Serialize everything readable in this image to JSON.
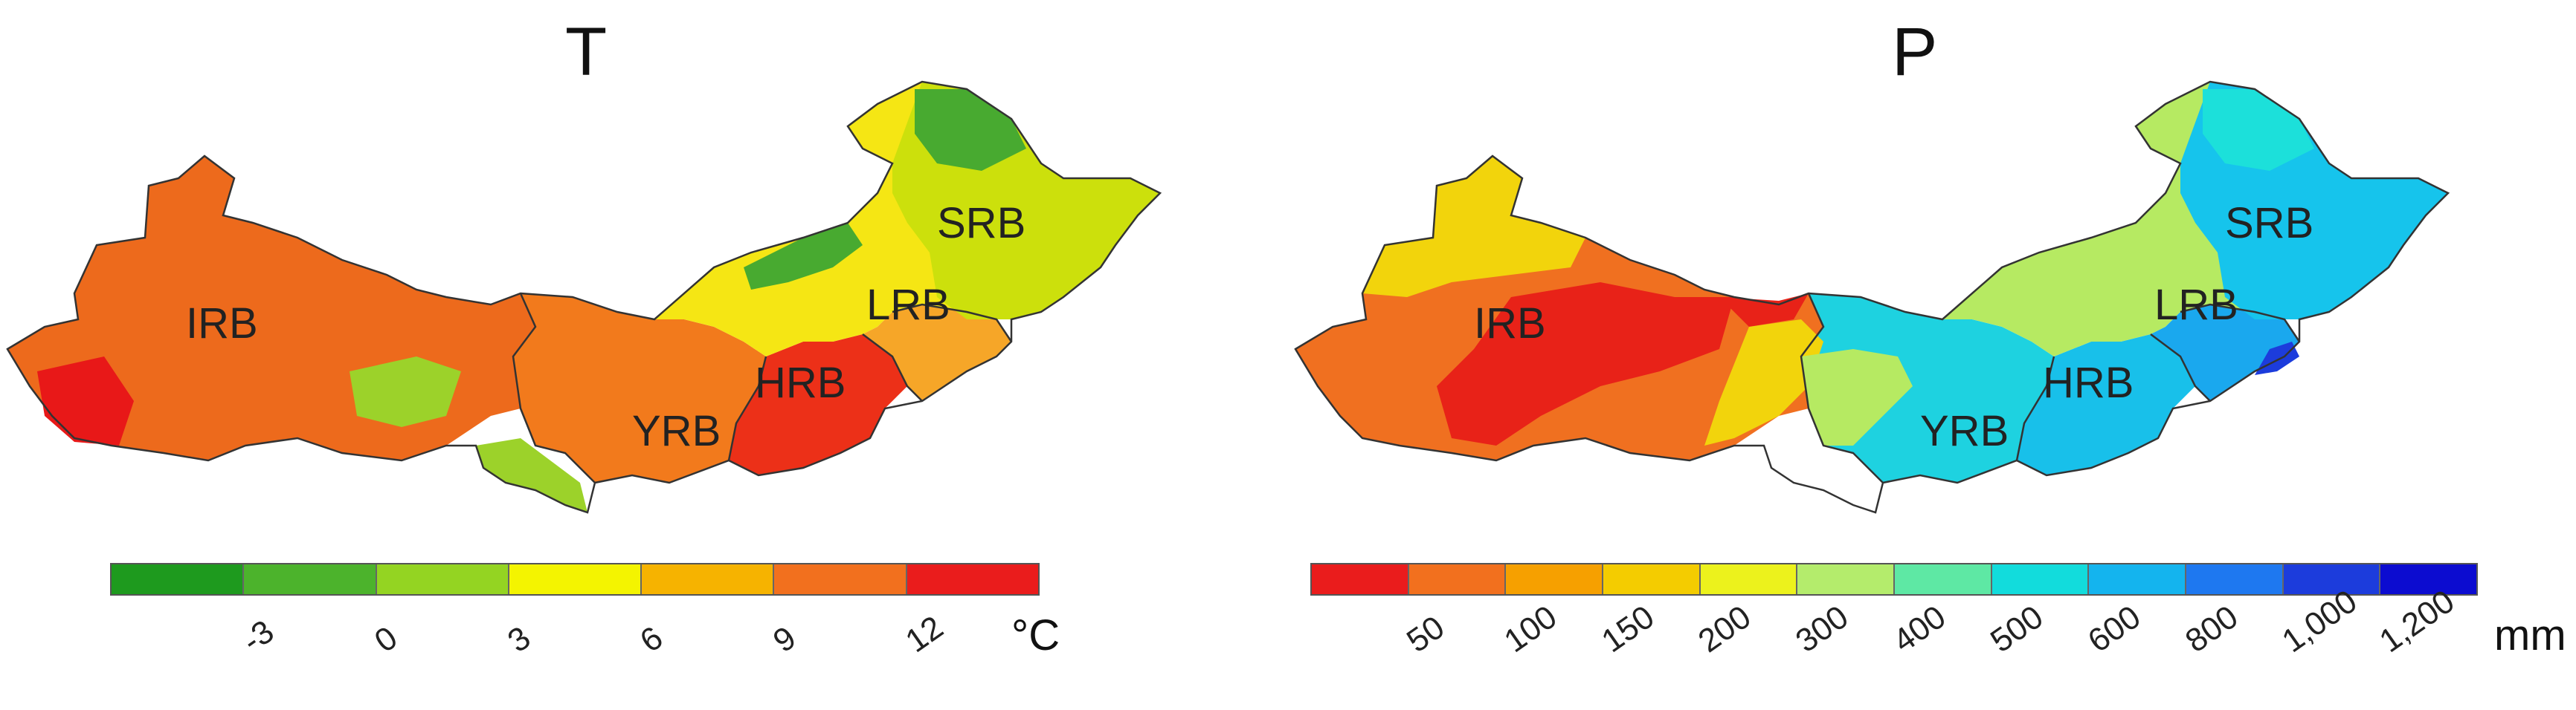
{
  "maps": [
    {
      "title": "T",
      "unit": "°C",
      "legend_colors": [
        "#1e9a1e",
        "#4cb32c",
        "#94d422",
        "#f4f400",
        "#f6b300",
        "#f2701e",
        "#ea1c1c"
      ],
      "tick_labels": [
        "-3",
        "0",
        "3",
        "6",
        "9",
        "12"
      ],
      "regions": [
        "IRB",
        "YRB",
        "HRB",
        "LRB",
        "SRB"
      ],
      "fill_colors": {
        "irb": "#ed6a1c",
        "yrb": "#f27a1c",
        "hrb": "#ec3018",
        "lrb": "#f6a628",
        "srb": "#cce00c",
        "ne": "#48aa30",
        "hot": "#e81818",
        "cool": "#9cd22a",
        "warm": "#f5e614"
      }
    },
    {
      "title": "P",
      "unit": "mm",
      "legend_colors": [
        "#ea1c1c",
        "#f2701e",
        "#f6a000",
        "#f4cc00",
        "#ecf21c",
        "#b4ec6c",
        "#5ee8a4",
        "#12dcdc",
        "#14b4ee",
        "#1e78f0",
        "#1c3cdc",
        "#0c0cd0"
      ],
      "tick_labels": [
        "50",
        "100",
        "150",
        "200",
        "300",
        "400",
        "500",
        "600",
        "800",
        "1,000",
        "1,200"
      ],
      "regions": [
        "IRB",
        "YRB",
        "HRB",
        "LRB",
        "SRB"
      ],
      "fill_colors": {
        "irb": "#f07020",
        "yrb": "#1ed2e0",
        "hrb": "#18c0ea",
        "lrb": "#1aa8ee",
        "srb": "#16c4ec",
        "ne": "#1ce0da",
        "hot": "#e82218",
        "cool": "#b6ea62",
        "warm": "#f2d40c"
      }
    }
  ]
}
